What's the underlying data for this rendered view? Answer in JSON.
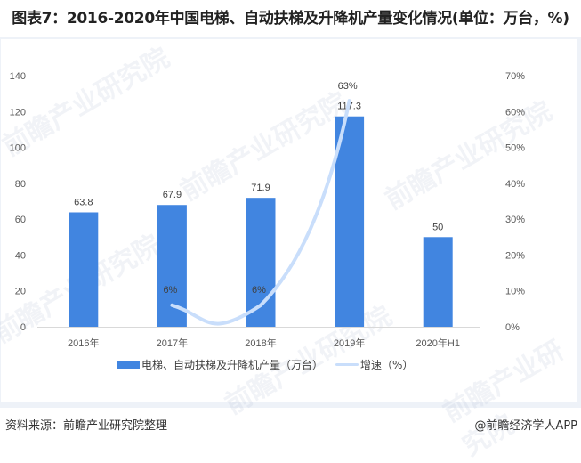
{
  "title": "图表7：2016-2020年中国电梯、自动扶梯及升降机产量变化情况(单位：万台，%)",
  "footer": {
    "source": "资料来源：前瞻产业研究院整理",
    "brand": "@前瞻经济学人APP"
  },
  "watermark": "前瞻产业研究院",
  "legend": {
    "bar_label": "电梯、自动扶梯及升降机产量（万台）",
    "line_label": "增速（%）"
  },
  "colors": {
    "bar": "#4185e0",
    "line": "#c9defb",
    "panel_border": "#eef2f8"
  },
  "chart_data": {
    "type": "bar+line",
    "title": "图表7：2016-2020年中国电梯、自动扶梯及升降机产量变化情况(单位：万台，%)",
    "categories": [
      "2016年",
      "2017年",
      "2018年",
      "2019年",
      "2020年H1"
    ],
    "series": [
      {
        "name": "电梯、自动扶梯及升降机产量（万台）",
        "type": "bar",
        "axis": "left",
        "values": [
          63.8,
          67.9,
          71.9,
          117.3,
          50
        ],
        "labels": [
          "63.8",
          "67.9",
          "71.9",
          "117.3",
          "50"
        ]
      },
      {
        "name": "增速（%）",
        "type": "line",
        "axis": "right",
        "smooth": true,
        "values": [
          null,
          6,
          6,
          63,
          null
        ],
        "labels": [
          "",
          "6%",
          "6%",
          "63%",
          ""
        ]
      }
    ],
    "y_left": {
      "min": 0,
      "max": 140,
      "ticks": [
        "0",
        "20",
        "40",
        "60",
        "80",
        "100",
        "120",
        "140"
      ]
    },
    "y_right": {
      "min": 0,
      "max": 70,
      "ticks": [
        "0%",
        "10%",
        "20%",
        "30%",
        "40%",
        "50%",
        "60%",
        "70%"
      ]
    },
    "xlabel": "",
    "ylabel": "",
    "grid": false,
    "legend_position": "bottom"
  }
}
